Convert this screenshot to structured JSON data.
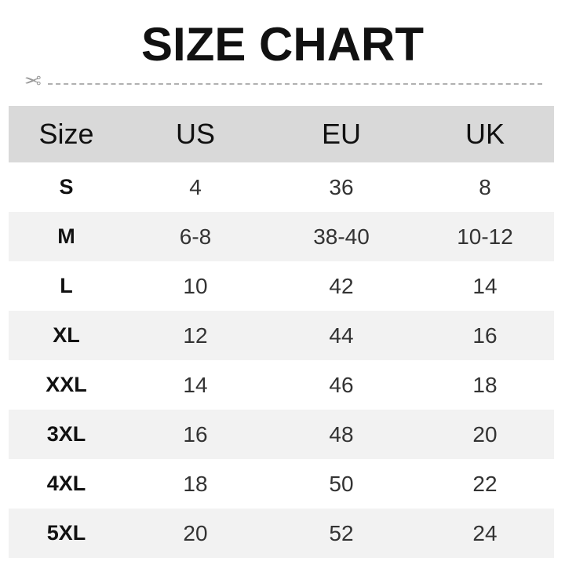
{
  "title": "SIZE CHART",
  "icons": {
    "cut": "scissors-icon"
  },
  "colors": {
    "header_bg": "#d9d9d9",
    "alt_row_bg": "#f2f2f2"
  },
  "headers": [
    "Size",
    "US",
    "EU",
    "UK"
  ],
  "rows": [
    [
      "S",
      "4",
      "36",
      "8"
    ],
    [
      "M",
      "6-8",
      "38-40",
      "10-12"
    ],
    [
      "L",
      "10",
      "42",
      "14"
    ],
    [
      "XL",
      "12",
      "44",
      "16"
    ],
    [
      "XXL",
      "14",
      "46",
      "18"
    ],
    [
      "3XL",
      "16",
      "48",
      "20"
    ],
    [
      "4XL",
      "18",
      "50",
      "22"
    ],
    [
      "5XL",
      "20",
      "52",
      "24"
    ]
  ]
}
